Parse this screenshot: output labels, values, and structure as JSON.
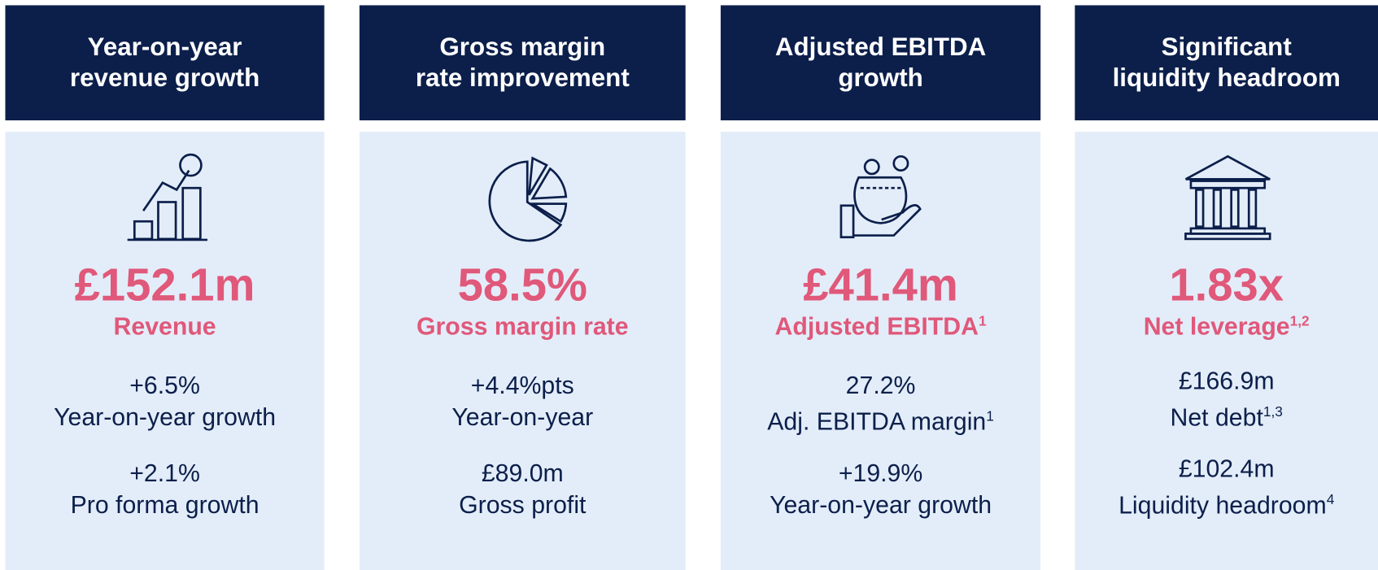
{
  "cards": [
    {
      "header": [
        "Year-on-year",
        "revenue growth"
      ],
      "value": "£152.1m",
      "label": "Revenue",
      "label_sup": null,
      "stats": [
        {
          "value": "+6.5%",
          "label": "Year-on-year growth",
          "sup": null
        },
        {
          "value": "+2.1%",
          "label": "Pro forma growth",
          "sup": null
        }
      ]
    },
    {
      "header": [
        "Gross margin",
        "rate improvement"
      ],
      "value": "58.5%",
      "label": "Gross margin rate",
      "label_sup": null,
      "stats": [
        {
          "value": "+4.4%pts",
          "label": "Year-on-year",
          "sup": null
        },
        {
          "value": "£89.0m",
          "label": "Gross profit",
          "sup": null
        }
      ]
    },
    {
      "header": [
        "Adjusted EBITDA",
        "growth"
      ],
      "value": "£41.4m",
      "label": "Adjusted EBITDA",
      "label_sup": "1",
      "stats": [
        {
          "value": "27.2%",
          "label": "Adj. EBITDA margin",
          "sup": "1"
        },
        {
          "value": "+19.9%",
          "label": "Year-on-year growth",
          "sup": null
        }
      ]
    },
    {
      "header": [
        "Significant",
        "liquidity headroom"
      ],
      "value": "1.83x",
      "label": "Net leverage",
      "label_sup": "1,2",
      "stats": [
        {
          "value": "£166.9m",
          "label": "Net debt",
          "sup": "1,3"
        },
        {
          "value": "£102.4m",
          "label": "Liquidity headroom",
          "sup": "4"
        }
      ]
    }
  ]
}
